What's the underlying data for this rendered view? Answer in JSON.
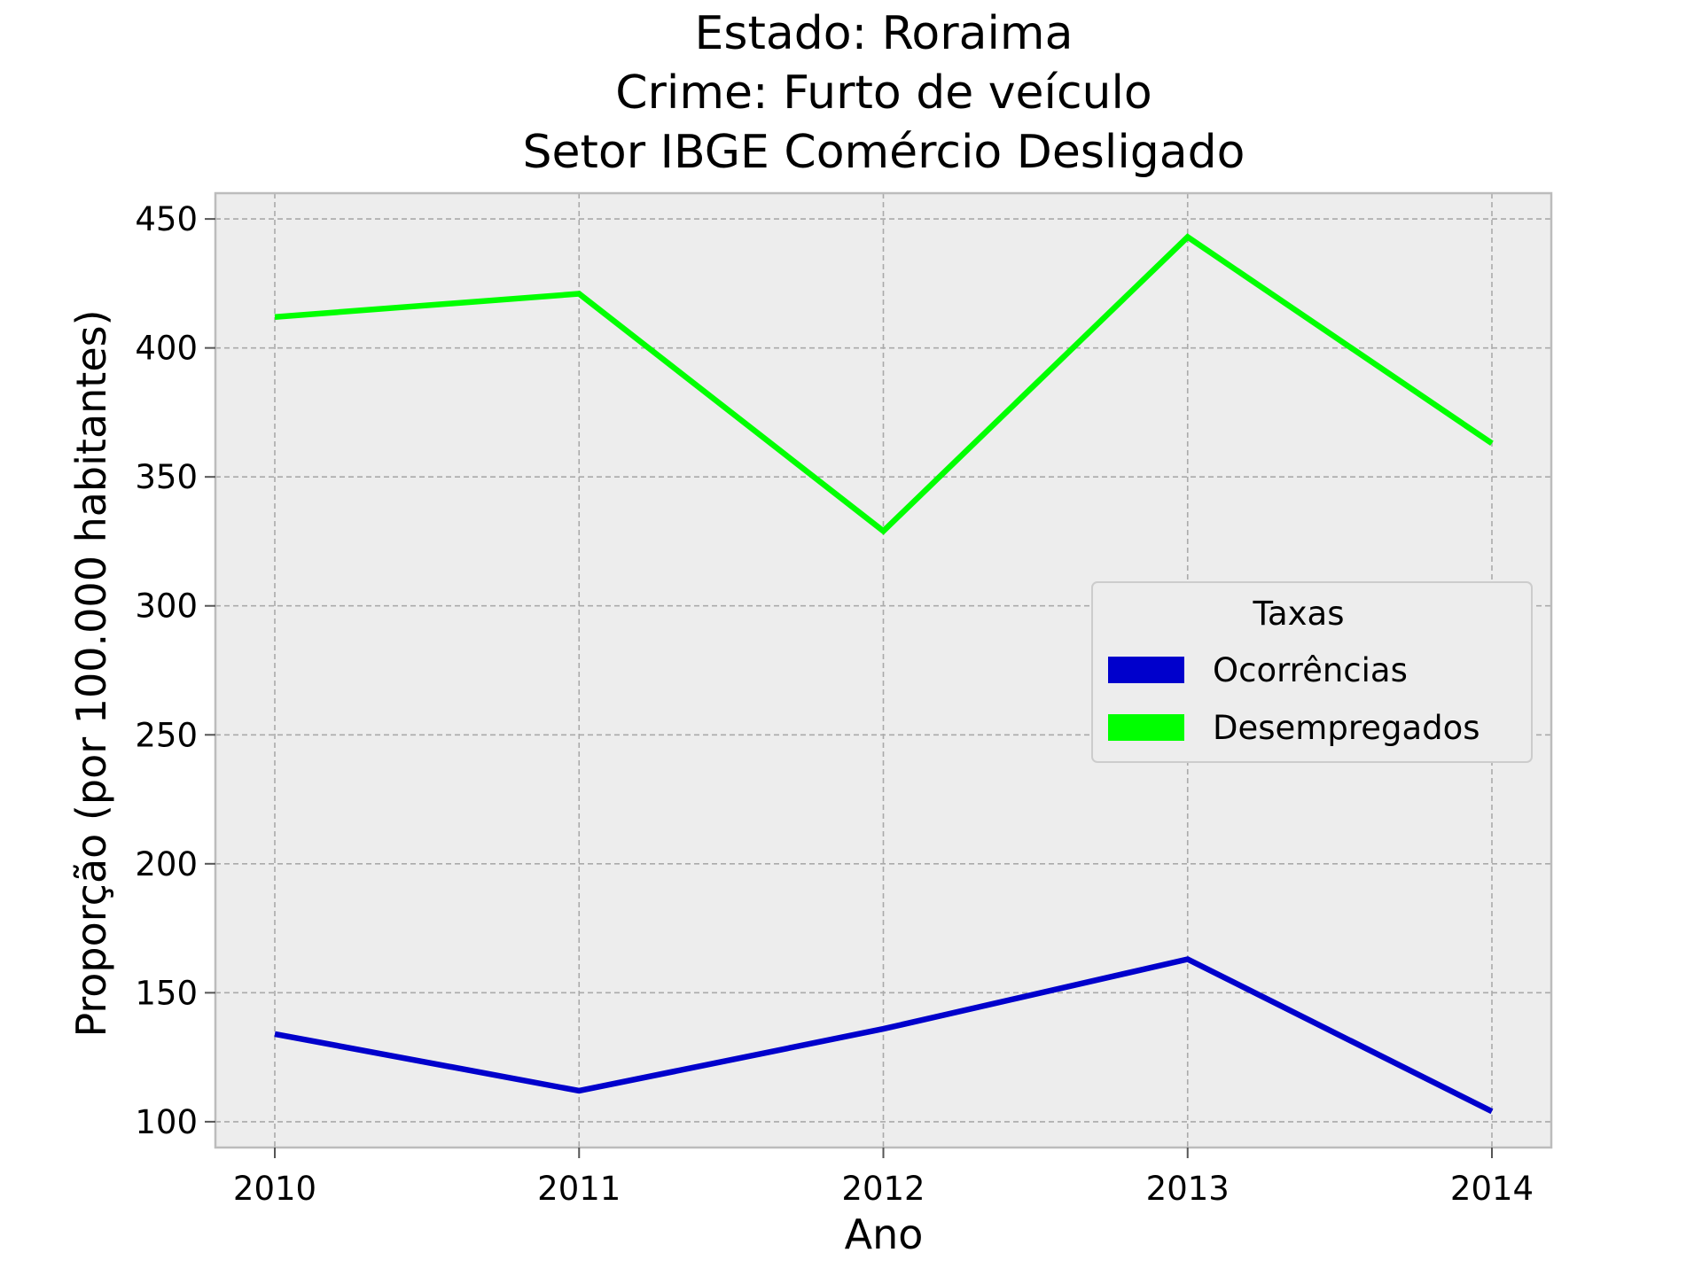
{
  "chart_data": {
    "type": "line",
    "title": [
      "Estado: Roraima",
      "Crime: Furto de veículo",
      "Setor IBGE  Comércio   Desligado"
    ],
    "xlabel": "Ano",
    "ylabel": "Proporção (por 100.000 habitantes)",
    "x": [
      "2010",
      "2011",
      "2012",
      "2013",
      "2014"
    ],
    "yticks": [
      "100",
      "150",
      "200",
      "250",
      "300",
      "350",
      "400",
      "450"
    ],
    "ylim": [
      90,
      460
    ],
    "grid": true,
    "legend": {
      "title": "Taxas",
      "placement": "center-right"
    },
    "series": [
      {
        "name": "Ocorrências",
        "color": "#0000cc",
        "values": [
          134,
          112,
          136,
          163,
          104
        ]
      },
      {
        "name": "Desempregados",
        "color": "#00ff00",
        "values": [
          412,
          421,
          329,
          443,
          363
        ]
      }
    ]
  },
  "colors": {
    "plot_background": "#ededed",
    "grid": "#aaaaaa",
    "spine": "#bcbcbc"
  }
}
